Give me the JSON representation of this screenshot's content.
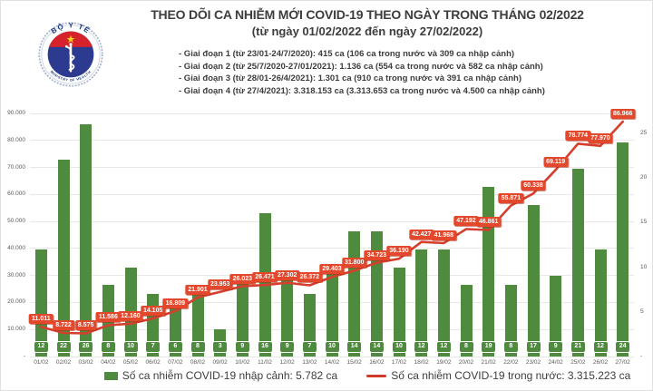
{
  "header": {
    "title": "THEO DÕI CA NHIỄM MỚI COVID-19 THEO NGÀY TRONG THÁNG 02/2022",
    "subtitle": "(từ ngày 01/02/2022 đến ngày 27/02/2022)",
    "bullets": [
      "- Giai đoạn 1 (từ 23/01-24/7/2020): 415 ca (106 ca trong nước và 309 ca nhập cảnh)",
      "- Giai đoạn 2 (từ 25/7/2020-27/01/2021): 1.136 ca (554 ca trong nước và 582 ca nhập cảnh)",
      "- Giai đoạn 3 (từ 28/01-26/4/2021): 1.301 ca (910 ca trong nước và 391 ca nhập cảnh)",
      "- Giai đoạn 4 (từ 27/4/2021): 3.318.153 ca (3.313.653 ca trong nước và 4.500 ca nhập cảnh)"
    ]
  },
  "logo": {
    "arc_top": "BỘ Y TẾ",
    "arc_bottom": "MINISTRY OF HEALTH"
  },
  "legend": {
    "bar_label": "Số ca nhiễm COVID-19 nhập cảnh: 5.782 ca",
    "line_label": "Số ca nhiễm COVID-19 trong nước: 3.315.223 ca"
  },
  "colors": {
    "bar_green": "#4e8b3f",
    "line_red": "#d63e2e",
    "label_red": "#e3472c"
  },
  "chart_data": {
    "type": "bar",
    "subtype": "combo bar+line, dual axis",
    "categories": [
      "01/02",
      "02/02",
      "03/02",
      "04/02",
      "05/02",
      "06/02",
      "07/02",
      "08/02",
      "09/02",
      "10/02",
      "11/02",
      "12/02",
      "13/02",
      "14/02",
      "15/02",
      "16/02",
      "17/02",
      "18/02",
      "19/02",
      "20/02",
      "21/02",
      "22/02",
      "23/02",
      "24/02",
      "25/02",
      "26/02",
      "27/02"
    ],
    "series": [
      {
        "name": "Số ca nhiễm COVID-19 nhập cảnh",
        "type": "bar",
        "axis": "right",
        "color": "#4e8b3f",
        "values": [
          12,
          22,
          26,
          8,
          10,
          7,
          6,
          8,
          3,
          9,
          16,
          9,
          7,
          10,
          14,
          14,
          10,
          12,
          12,
          8,
          19,
          8,
          17,
          9,
          21,
          12,
          24
        ]
      },
      {
        "name": "Số ca nhiễm COVID-19 trong nước",
        "type": "line",
        "axis": "left",
        "color": "#d63e2e",
        "values": [
          11011,
          8722,
          8575,
          11586,
          12160,
          14105,
          16809,
          21901,
          23953,
          26023,
          26471,
          27302,
          26372,
          29403,
          31800,
          34723,
          36190,
          42427,
          41968,
          47192,
          46861,
          55871,
          60338,
          69119,
          78774,
          77970,
          86966
        ]
      }
    ],
    "left_axis": {
      "min": 0,
      "max": 90000,
      "tick_labels": [
        "-",
        "10.000",
        "20.000",
        "30.000",
        "40.000",
        "50.000",
        "60.000",
        "70.000",
        "80.000",
        "90.000"
      ]
    },
    "right_axis": {
      "min": 0,
      "max": 27,
      "tick_labels": [
        "-",
        "5",
        "10",
        "15",
        "20",
        "25"
      ]
    },
    "grid": true,
    "legend_position": "bottom"
  }
}
